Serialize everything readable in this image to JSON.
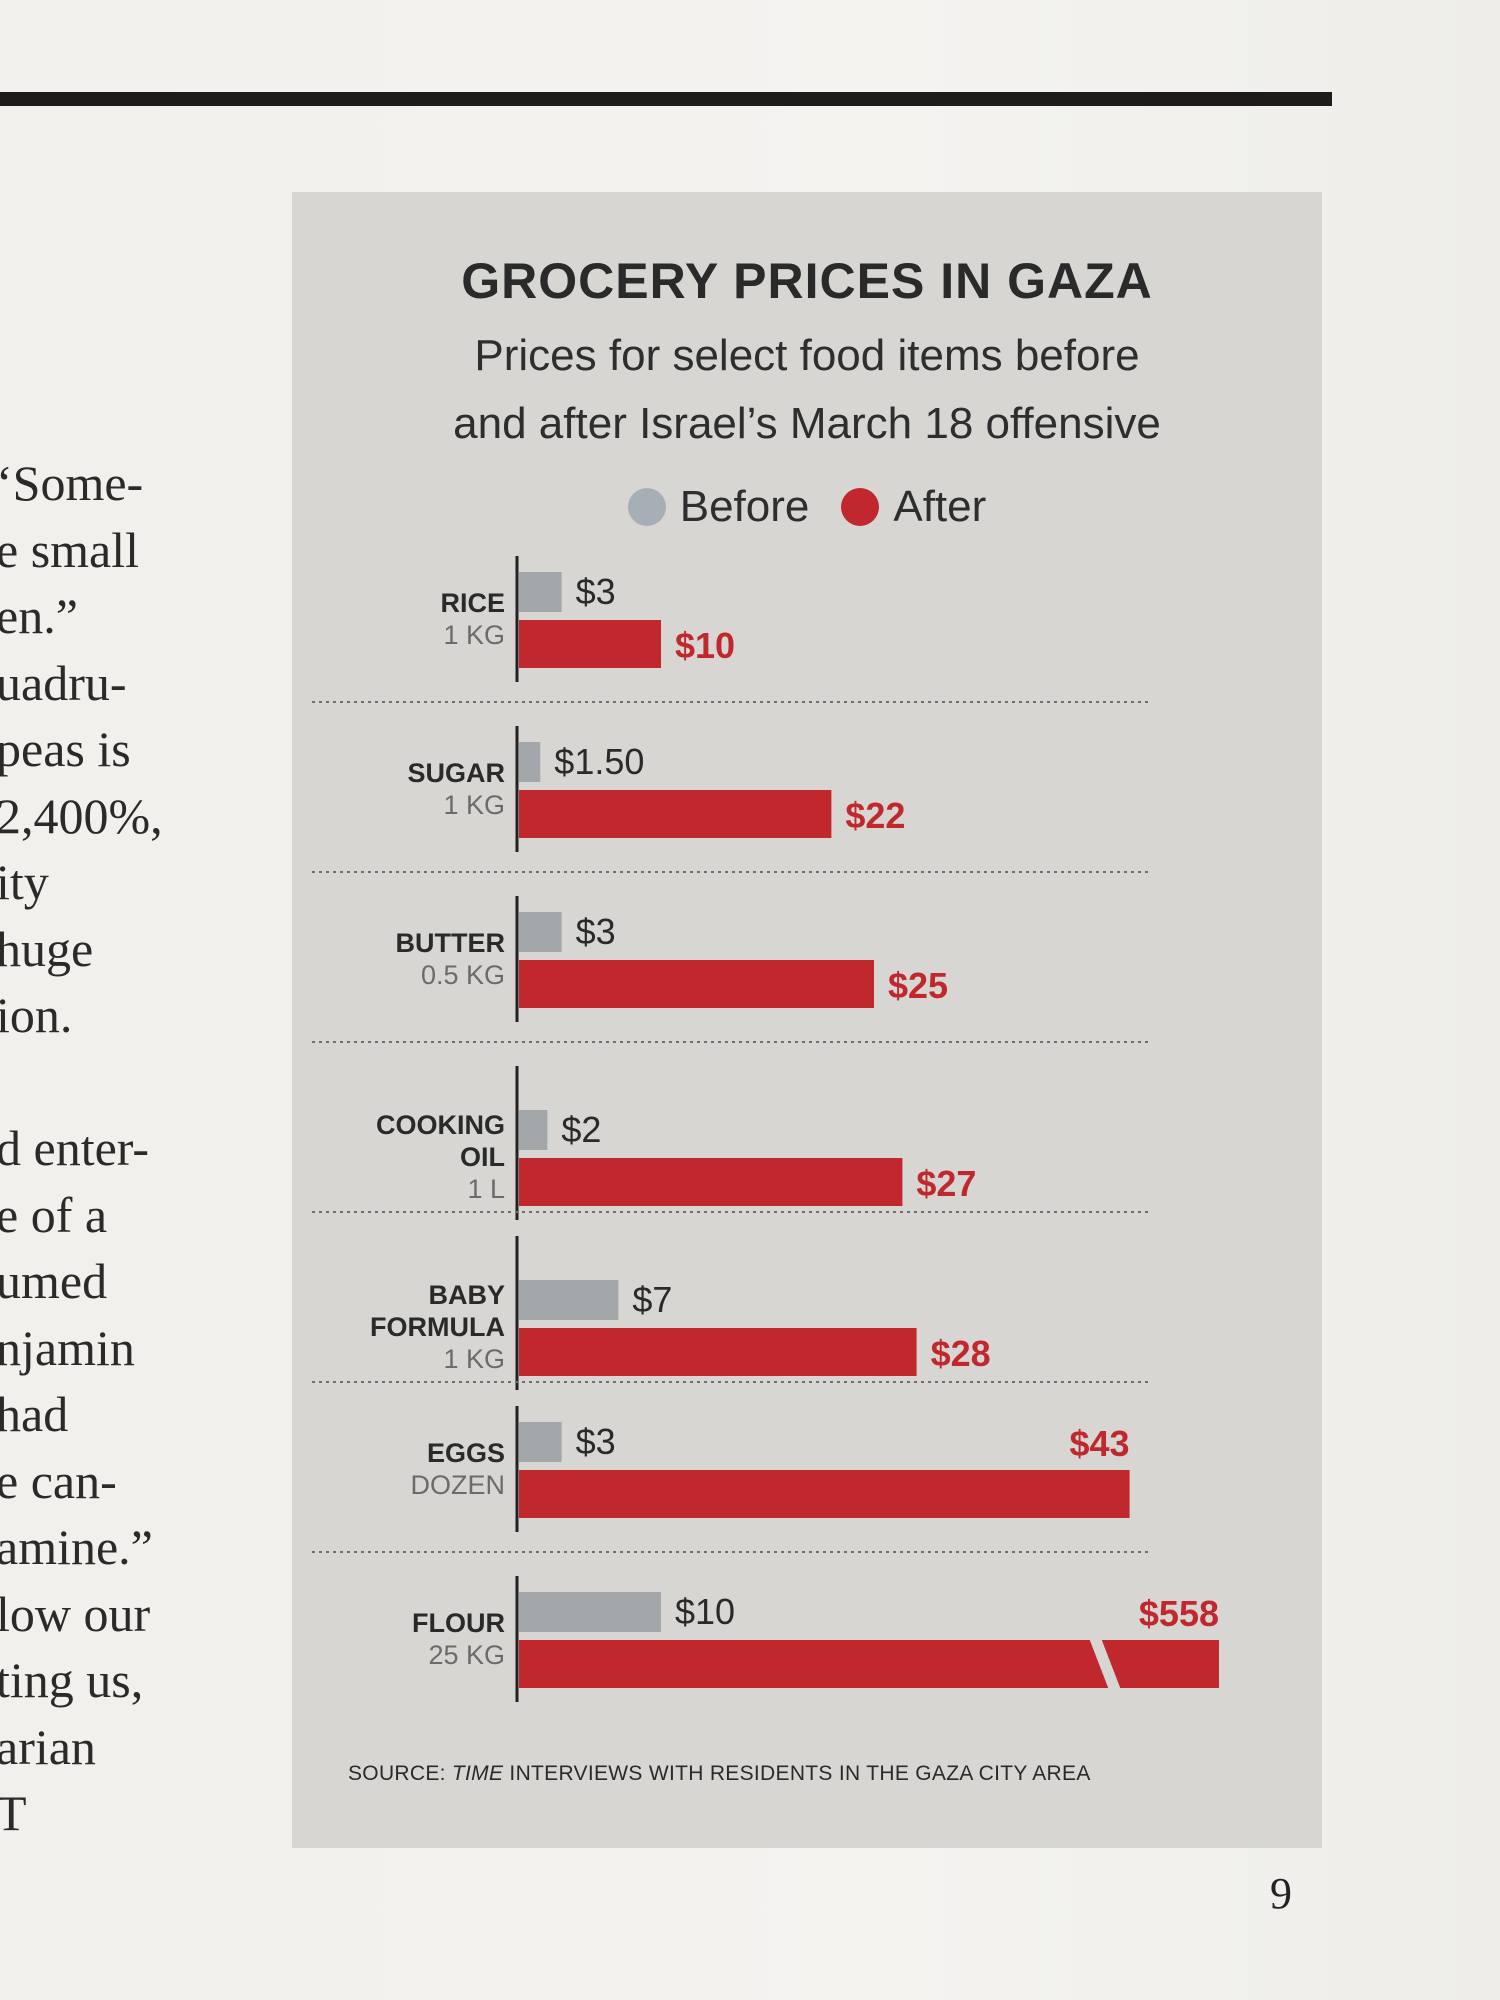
{
  "article_fragments": [
    "‘Some-",
    "e small",
    "en.”",
    "uadru-",
    "peas is",
    "2,400%,",
    "ity",
    "huge",
    "ion.",
    "",
    "d enter-",
    "e of a",
    "umed",
    "njamin",
    "had",
    "e can-",
    "amine.”",
    "low our",
    "ting us,",
    "arian",
    "T"
  ],
  "page_number": "9",
  "colors": {
    "before": "#a7afb6",
    "after": "#c1282e",
    "bar_before": "#a4a7aa"
  },
  "chart_data": {
    "type": "bar",
    "orientation": "horizontal",
    "title": "GROCERY PRICES IN GAZA",
    "subtitle_lines": [
      "Prices for select food items before",
      "and after Israel’s March 18 offensive"
    ],
    "legend": [
      "Before",
      "After"
    ],
    "legend_placement": "top",
    "categories": [
      {
        "name": [
          "RICE"
        ],
        "unit": "1 KG"
      },
      {
        "name": [
          "SUGAR"
        ],
        "unit": "1 KG"
      },
      {
        "name": [
          "BUTTER"
        ],
        "unit": "0.5 KG"
      },
      {
        "name": [
          "COOKING",
          "OIL"
        ],
        "unit": "1 L"
      },
      {
        "name": [
          "BABY",
          "FORMULA"
        ],
        "unit": "1 KG"
      },
      {
        "name": [
          "EGGS"
        ],
        "unit": "DOZEN"
      },
      {
        "name": [
          "FLOUR"
        ],
        "unit": "25 KG"
      }
    ],
    "series": [
      {
        "name": "Before",
        "values": [
          3,
          1.5,
          3,
          2,
          7,
          3,
          10
        ],
        "labels": [
          "$3",
          "$1.50",
          "$3",
          "$2",
          "$7",
          "$3",
          "$10"
        ]
      },
      {
        "name": "After",
        "values": [
          10,
          22,
          25,
          27,
          28,
          43,
          558
        ],
        "labels": [
          "$10",
          "$22",
          "$25",
          "$27",
          "$28",
          "$43",
          "$558"
        ]
      }
    ],
    "axis_break": {
      "category": "FLOUR",
      "series": "After"
    },
    "grid": "dotted separators between categories",
    "source_prefix": "SOURCE: ",
    "source_italic": "TIME",
    "source_rest": " INTERVIEWS WITH RESIDENTS IN THE GAZA CITY AREA"
  }
}
